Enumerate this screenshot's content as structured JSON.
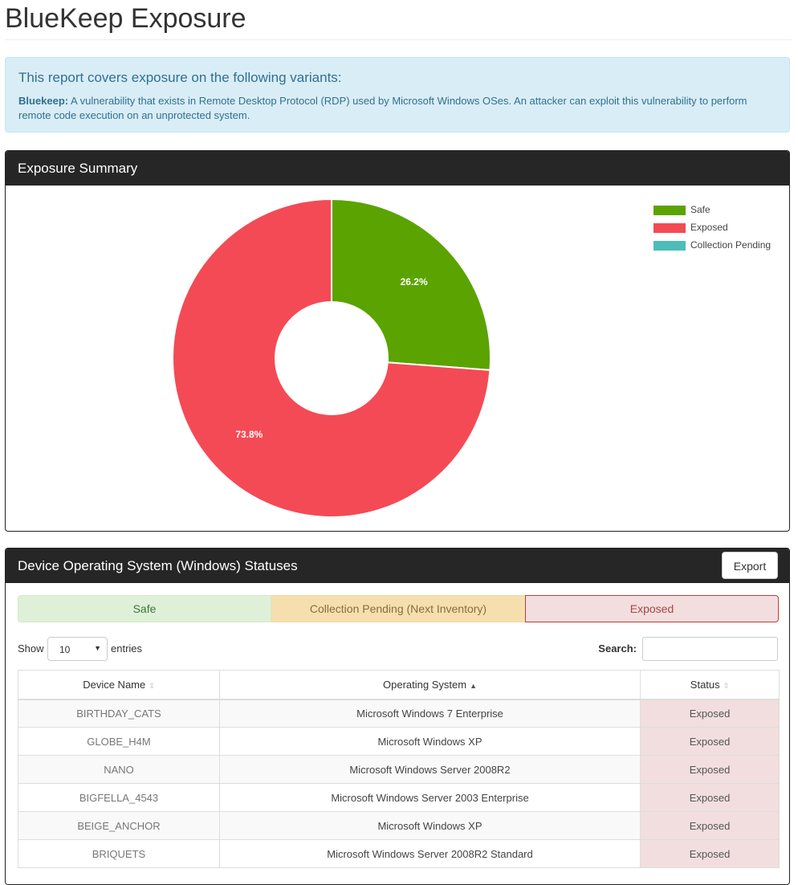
{
  "page": {
    "title": "BlueKeep Exposure"
  },
  "info": {
    "heading": "This report covers exposure on the following variants:",
    "variant_name": "Bluekeep:",
    "variant_desc": " A vulnerability that exists in Remote Desktop Protocol (RDP) used by Microsoft Windows OSes. An attacker can exploit this vulnerability to perform remote code execution on an unprotected system."
  },
  "summary_panel": {
    "title": "Exposure Summary"
  },
  "chart_data": {
    "type": "pie",
    "donut": true,
    "title": "",
    "legend_position": "top-right",
    "slices": [
      {
        "label": "Safe",
        "value": 26.2,
        "display": "26.2%",
        "color": "#5ba300"
      },
      {
        "label": "Exposed",
        "value": 73.8,
        "display": "73.8%",
        "color": "#f44a55"
      },
      {
        "label": "Collection Pending",
        "value": 0,
        "display": "",
        "color": "#4dbdb8"
      }
    ]
  },
  "devices_panel": {
    "title": "Device Operating System (Windows) Statuses",
    "export_label": "Export",
    "status_bar": {
      "safe": "Safe",
      "pending": "Collection Pending (Next Inventory)",
      "exposed": "Exposed"
    },
    "length": {
      "show": "Show",
      "value": "10",
      "entries": "entries"
    },
    "search_label": "Search:",
    "columns": [
      "Device Name",
      "Operating System",
      "Status"
    ],
    "rows": [
      {
        "device": "BIRTHDAY_CATS",
        "os": "Microsoft Windows 7 Enterprise",
        "status": "Exposed"
      },
      {
        "device": "GLOBE_H4M",
        "os": "Microsoft Windows XP",
        "status": "Exposed"
      },
      {
        "device": "NANO",
        "os": "Microsoft Windows Server 2008R2",
        "status": "Exposed"
      },
      {
        "device": "BIGFELLA_4543",
        "os": "Microsoft Windows Server 2003 Enterprise",
        "status": "Exposed"
      },
      {
        "device": "BEIGE_ANCHOR",
        "os": "Microsoft Windows XP",
        "status": "Exposed"
      },
      {
        "device": "BRIQUETS",
        "os": "Microsoft Windows Server 2008R2 Standard",
        "status": "Exposed"
      }
    ]
  },
  "colors": {
    "header_bg": "#262626",
    "info_bg": "#d9edf7",
    "safe": "#5ba300",
    "exposed": "#f44a55",
    "pending": "#4dbdb8"
  }
}
